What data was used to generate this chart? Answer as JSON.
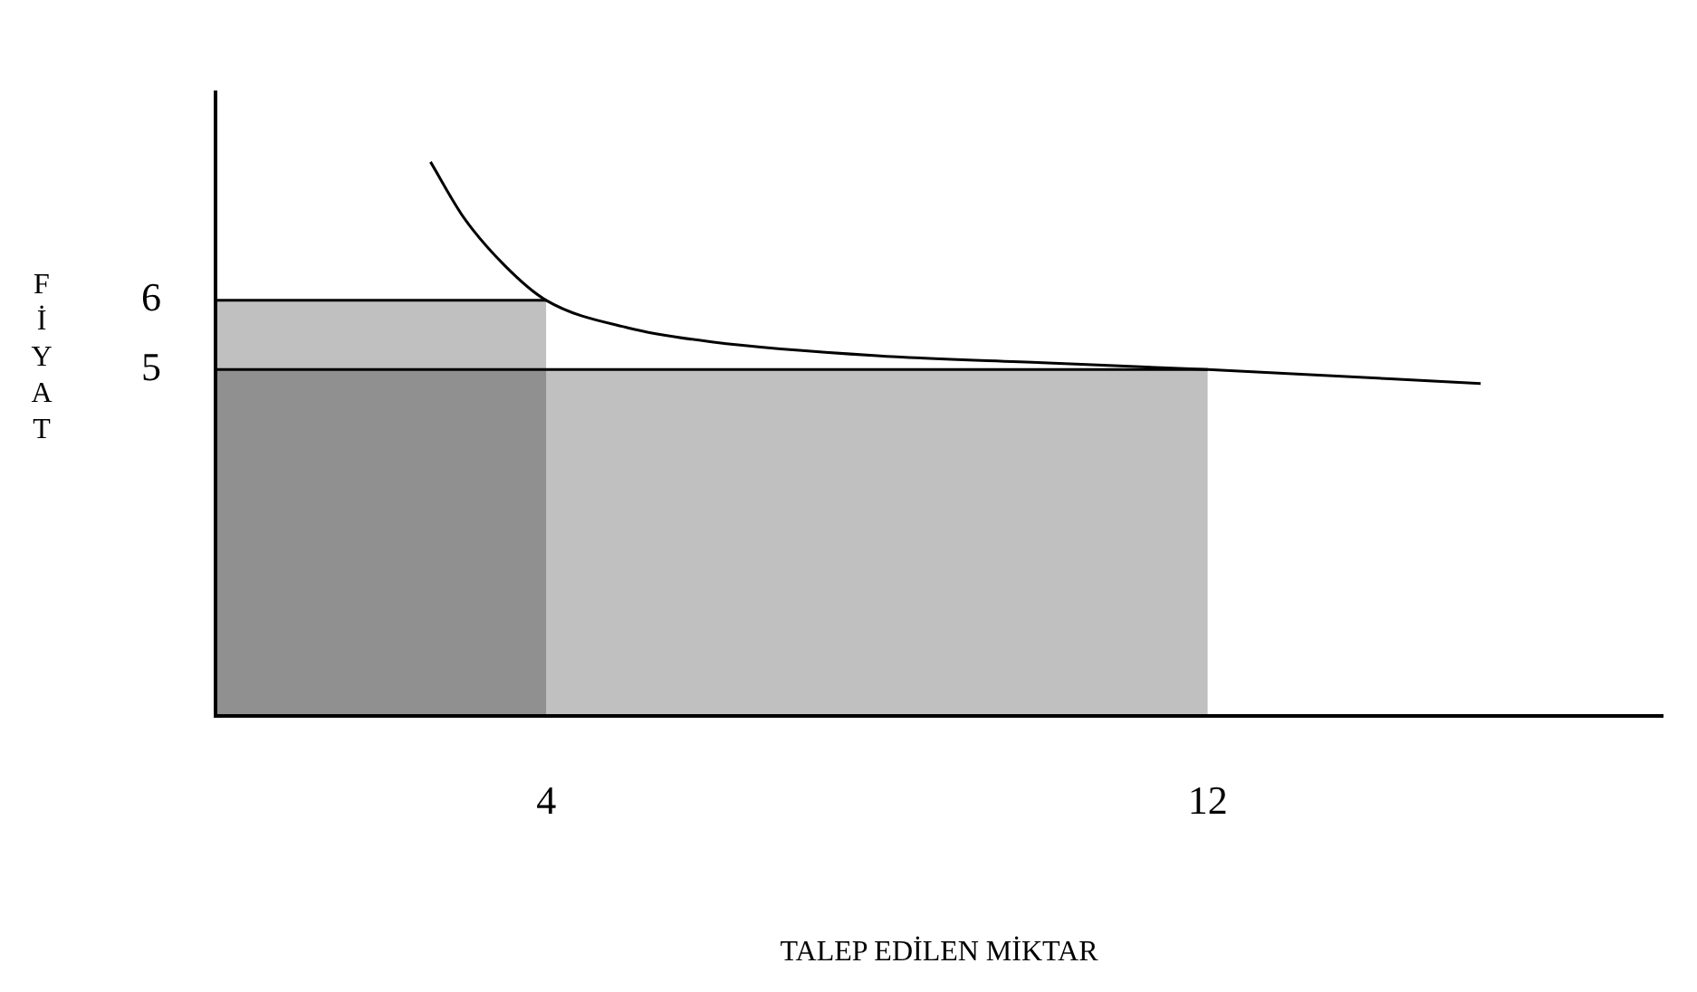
{
  "chart_data": {
    "type": "line",
    "xlabel": "TALEP EDİLEN MİKTAR",
    "ylabel": "FİYAT",
    "xlim": [
      0,
      17.5
    ],
    "ylim": [
      0,
      9
    ],
    "xticks": [
      4,
      12
    ],
    "yticks": [
      5,
      6
    ],
    "grid": false,
    "legend": false,
    "marker": "none",
    "series": [
      {
        "type": "area",
        "color": "#c0c0c0",
        "x": [
          0,
          4
        ],
        "values": [
          6,
          6
        ]
      },
      {
        "type": "area",
        "color": "#c0c0c0",
        "x": [
          0,
          12
        ],
        "values": [
          5,
          5
        ]
      },
      {
        "type": "line",
        "color": "#000000",
        "x": [
          2.6,
          3,
          3.5,
          4,
          5,
          6,
          8,
          10,
          12,
          15.3
        ],
        "values": [
          8,
          7.2,
          6.5,
          6,
          5.6,
          5.4,
          5.2,
          5.1,
          5,
          4.8
        ]
      }
    ]
  }
}
